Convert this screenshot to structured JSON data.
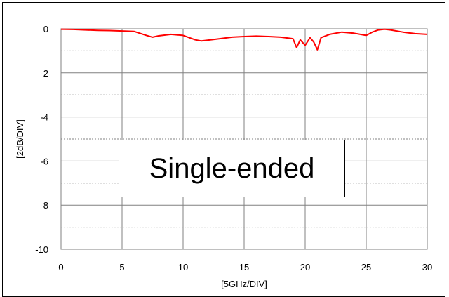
{
  "chart_data": {
    "type": "line",
    "title": "",
    "xlabel": "[5GHz/DIV]",
    "ylabel": "[2dB/DIV]",
    "xlim": [
      0,
      30
    ],
    "ylim": [
      -10,
      0
    ],
    "x_ticks": [
      "0",
      "5",
      "10",
      "15",
      "20",
      "25",
      "30"
    ],
    "y_ticks": [
      "0",
      "-2",
      "-4",
      "-6",
      "-8",
      "-10"
    ],
    "grid": true,
    "annotation": "Single-ended",
    "series": [
      {
        "color": "#ff0000",
        "x": [
          0,
          1,
          2,
          3,
          4,
          5,
          6,
          7,
          7.5,
          8,
          9,
          10,
          11,
          11.5,
          12,
          13,
          14,
          15,
          16,
          17,
          18,
          19,
          19.3,
          19.6,
          20,
          20.4,
          20.7,
          21,
          21.3,
          22,
          23,
          24,
          25,
          25.5,
          26,
          26.5,
          27,
          28,
          29,
          30
        ],
        "y": [
          -0.02,
          -0.03,
          -0.05,
          -0.07,
          -0.08,
          -0.1,
          -0.12,
          -0.3,
          -0.38,
          -0.32,
          -0.25,
          -0.3,
          -0.5,
          -0.55,
          -0.52,
          -0.45,
          -0.38,
          -0.35,
          -0.33,
          -0.35,
          -0.38,
          -0.45,
          -0.85,
          -0.5,
          -0.75,
          -0.4,
          -0.6,
          -0.95,
          -0.4,
          -0.25,
          -0.15,
          -0.2,
          -0.3,
          -0.15,
          -0.05,
          -0.02,
          -0.05,
          -0.15,
          -0.22,
          -0.25
        ]
      }
    ]
  }
}
